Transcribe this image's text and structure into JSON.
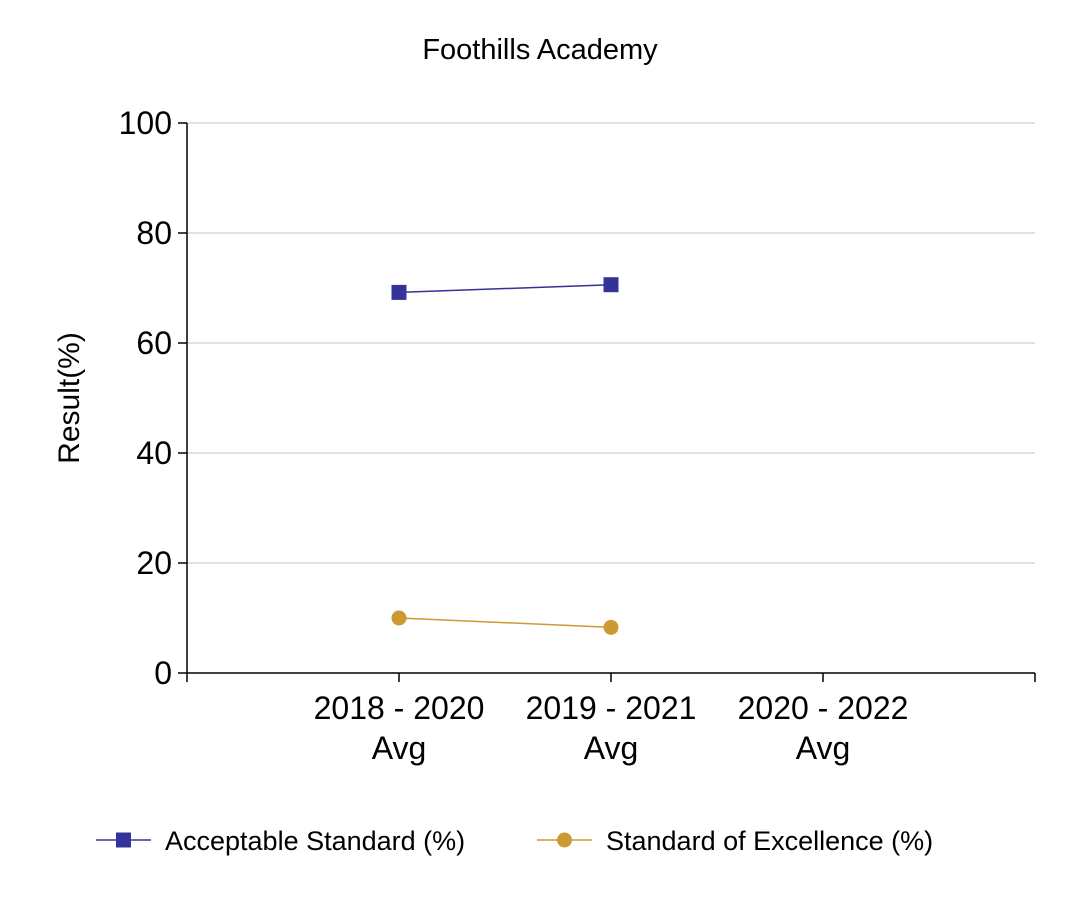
{
  "chart_data": {
    "type": "line",
    "title": "Foothills Academy",
    "xlabel": "",
    "ylabel": "Result(%)",
    "categories": [
      [
        "2018 - 2020",
        "Avg"
      ],
      [
        "2019 - 2021",
        "Avg"
      ],
      [
        "2020 - 2022",
        "Avg"
      ]
    ],
    "ylim": [
      0,
      100
    ],
    "yticks": [
      0,
      20,
      40,
      60,
      80,
      100
    ],
    "grid": true,
    "legend_position": "bottom",
    "series": [
      {
        "name": "Acceptable Standard (%)",
        "color": "#333399",
        "marker": "square",
        "values": [
          69.2,
          70.6,
          null
        ]
      },
      {
        "name": "Standard of Excellence (%)",
        "color": "#CC9933",
        "marker": "circle",
        "values": [
          10.0,
          8.3,
          null
        ]
      }
    ]
  }
}
